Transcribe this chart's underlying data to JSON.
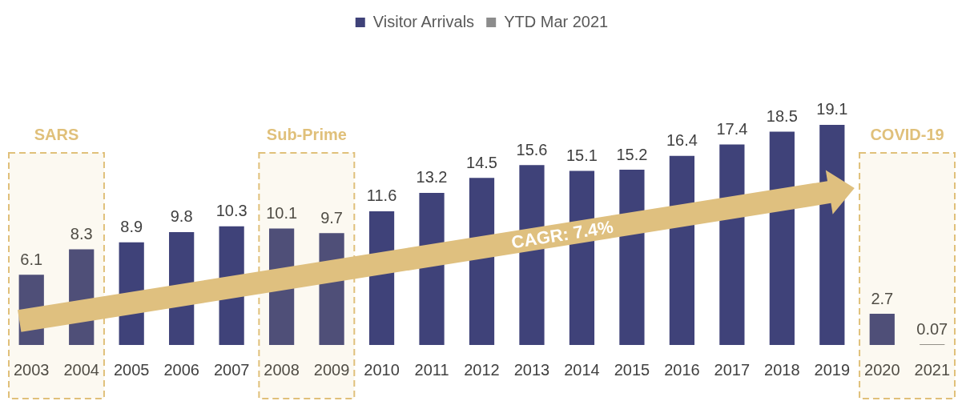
{
  "chart_data": {
    "type": "bar",
    "categories": [
      "2003",
      "2004",
      "2005",
      "2006",
      "2007",
      "2008",
      "2009",
      "2010",
      "2011",
      "2012",
      "2013",
      "2014",
      "2015",
      "2016",
      "2017",
      "2018",
      "2019",
      "2020",
      "2021"
    ],
    "series": [
      {
        "name": "Visitor Arrivals",
        "color": "#3f4279",
        "values": [
          6.1,
          8.3,
          8.9,
          9.8,
          10.3,
          10.1,
          9.7,
          11.6,
          13.2,
          14.5,
          15.6,
          15.1,
          15.2,
          16.4,
          17.4,
          18.5,
          19.1,
          2.7,
          null
        ]
      },
      {
        "name": "YTD Mar 2021",
        "color": "#8c8c8c",
        "values": [
          null,
          null,
          null,
          null,
          null,
          null,
          null,
          null,
          null,
          null,
          null,
          null,
          null,
          null,
          null,
          null,
          null,
          null,
          0.07
        ]
      }
    ],
    "data_labels": true,
    "legend": "top",
    "grid": false,
    "tick_labels": "x",
    "bands": [
      {
        "axis": "x",
        "from": "2003",
        "to": "2004",
        "label": "SARS",
        "color": "#e0c07a"
      },
      {
        "axis": "x",
        "from": "2008",
        "to": "2009",
        "label": "Sub-Prime",
        "color": "#e0c07a"
      },
      {
        "axis": "x",
        "from": "2020",
        "to": "2021",
        "label": "COVID-19",
        "color": "#e0c07a"
      }
    ],
    "annotations": [
      "CAGR: 7.4%"
    ]
  }
}
